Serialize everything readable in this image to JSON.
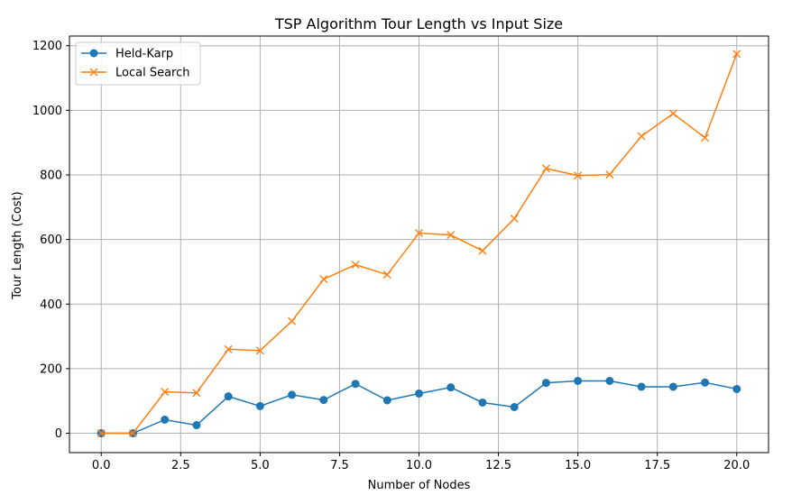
{
  "chart_data": {
    "type": "line",
    "title": "TSP Algorithm Tour Length vs Input Size",
    "xlabel": "Number of Nodes",
    "ylabel": "Tour Length (Cost)",
    "xlim": [
      -1,
      21
    ],
    "ylim": [
      -60,
      1230
    ],
    "xticks": [
      0,
      2.5,
      5,
      7.5,
      10,
      12.5,
      15,
      17.5,
      20
    ],
    "xtick_labels": [
      "0.0",
      "2.5",
      "5.0",
      "7.5",
      "10.0",
      "12.5",
      "15.0",
      "17.5",
      "20.0"
    ],
    "yticks": [
      0,
      200,
      400,
      600,
      800,
      1000,
      1200
    ],
    "ytick_labels": [
      "0",
      "200",
      "400",
      "600",
      "800",
      "1000",
      "1200"
    ],
    "grid": true,
    "legend_position": "top-left",
    "x": [
      0,
      1,
      2,
      3,
      4,
      5,
      6,
      7,
      8,
      9,
      10,
      11,
      12,
      13,
      14,
      15,
      16,
      17,
      18,
      19,
      20
    ],
    "series": [
      {
        "name": "Held-Karp",
        "color": "#1f77b4",
        "marker": "circle",
        "values": [
          0,
          0,
          42,
          25,
          114,
          84,
          119,
          103,
          153,
          102,
          123,
          142,
          95,
          81,
          156,
          162,
          162,
          144,
          144,
          157,
          137
        ]
      },
      {
        "name": "Local Search",
        "color": "#ff7f0e",
        "marker": "x",
        "values": [
          0,
          0,
          128,
          125,
          260,
          256,
          347,
          477,
          522,
          491,
          620,
          614,
          565,
          665,
          820,
          798,
          801,
          920,
          990,
          915,
          1175
        ]
      }
    ]
  }
}
